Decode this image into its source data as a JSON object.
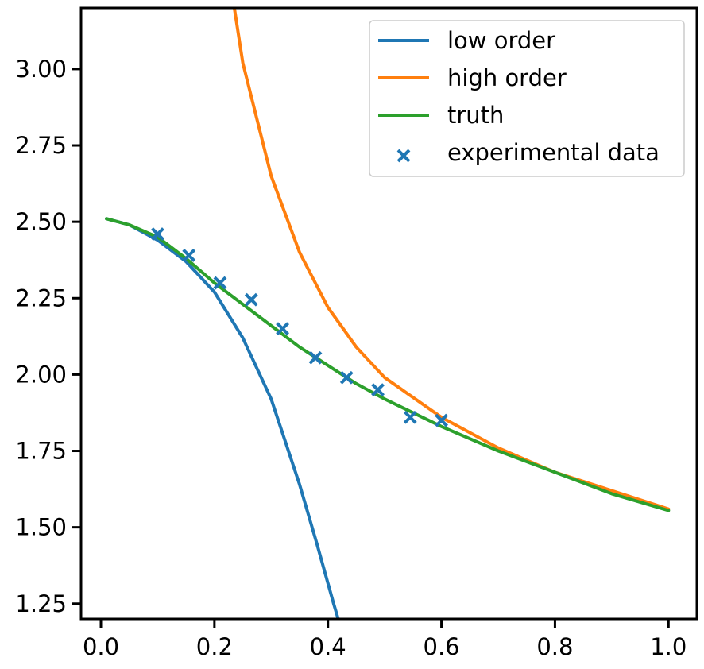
{
  "chart_data": {
    "type": "line",
    "title": "",
    "xlabel": "",
    "ylabel": "",
    "xlim": [
      -0.035,
      1.05
    ],
    "ylim": [
      1.2,
      3.2
    ],
    "x_ticks": [
      0.0,
      0.2,
      0.4,
      0.6,
      0.8,
      1.0
    ],
    "x_tick_labels": [
      "0.0",
      "0.2",
      "0.4",
      "0.6",
      "0.8",
      "1.0"
    ],
    "y_ticks": [
      1.25,
      1.5,
      1.75,
      2.0,
      2.25,
      2.5,
      2.75,
      3.0
    ],
    "y_tick_labels": [
      "1.25",
      "1.50",
      "1.75",
      "2.00",
      "2.25",
      "2.50",
      "2.75",
      "3.00"
    ],
    "grid": false,
    "legend_position": "top-right",
    "series": [
      {
        "name": "low order",
        "kind": "line",
        "color": "#1f77b4",
        "x": [
          0.01,
          0.05,
          0.1,
          0.15,
          0.2,
          0.25,
          0.3,
          0.35,
          0.38,
          0.41,
          0.418
        ],
        "y": [
          2.51,
          2.49,
          2.44,
          2.37,
          2.27,
          2.12,
          1.92,
          1.64,
          1.45,
          1.25,
          1.2
        ]
      },
      {
        "name": "high order",
        "kind": "line",
        "color": "#ff7f0e",
        "x": [
          0.235,
          0.25,
          0.3,
          0.35,
          0.4,
          0.45,
          0.5,
          0.6,
          0.7,
          0.8,
          0.9,
          1.0
        ],
        "y": [
          3.2,
          3.02,
          2.65,
          2.4,
          2.22,
          2.09,
          1.99,
          1.86,
          1.76,
          1.68,
          1.62,
          1.56
        ]
      },
      {
        "name": "truth",
        "kind": "line",
        "color": "#2ca02c",
        "x": [
          0.01,
          0.05,
          0.1,
          0.15,
          0.2,
          0.25,
          0.3,
          0.35,
          0.4,
          0.45,
          0.5,
          0.6,
          0.7,
          0.8,
          0.9,
          1.0
        ],
        "y": [
          2.51,
          2.49,
          2.45,
          2.38,
          2.3,
          2.23,
          2.16,
          2.09,
          2.03,
          1.97,
          1.92,
          1.83,
          1.75,
          1.68,
          1.61,
          1.555
        ]
      },
      {
        "name": "experimental data",
        "kind": "scatter",
        "marker": "x",
        "color": "#1f77b4",
        "x": [
          0.1,
          0.155,
          0.21,
          0.265,
          0.32,
          0.378,
          0.433,
          0.488,
          0.545,
          0.6
        ],
        "y": [
          2.46,
          2.39,
          2.3,
          2.245,
          2.15,
          2.055,
          1.99,
          1.95,
          1.86,
          1.85
        ]
      }
    ]
  }
}
